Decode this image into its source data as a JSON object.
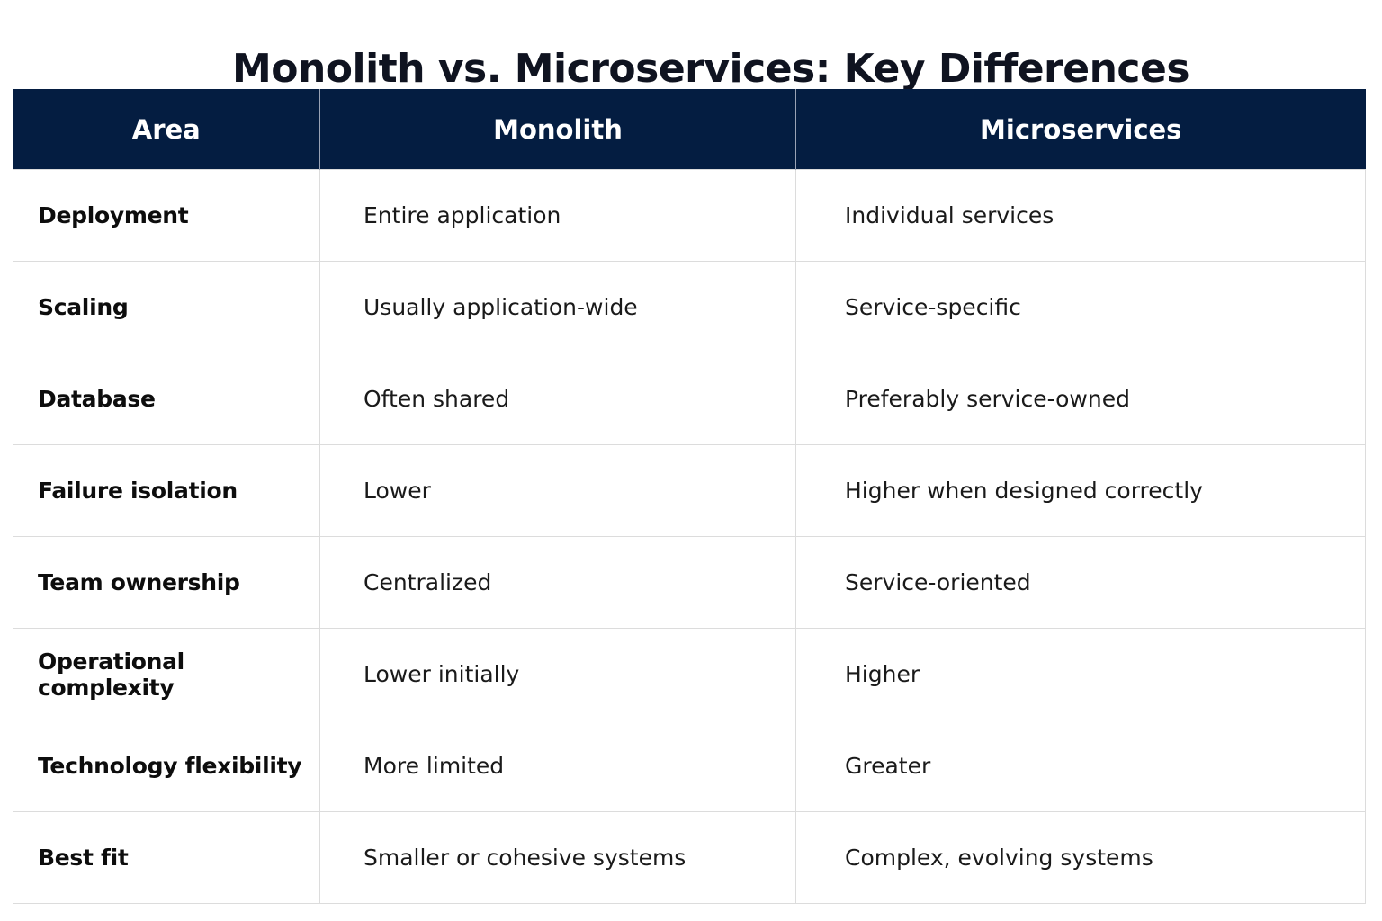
{
  "title": "Monolith vs. Microservices: Key Differences",
  "table": {
    "headers": {
      "area": "Area",
      "monolith": "Monolith",
      "microservices": "Microservices"
    },
    "rows": [
      {
        "area": "Deployment",
        "monolith": "Entire application",
        "microservices": "Individual services"
      },
      {
        "area": "Scaling",
        "monolith": "Usually application-wide",
        "microservices": "Service-specific"
      },
      {
        "area": "Database",
        "monolith": "Often shared",
        "microservices": "Preferably service-owned"
      },
      {
        "area": "Failure isolation",
        "monolith": "Lower",
        "microservices": "Higher when designed correctly"
      },
      {
        "area": "Team ownership",
        "monolith": "Centralized",
        "microservices": "Service-oriented"
      },
      {
        "area": "Operational complexity",
        "monolith": "Lower initially",
        "microservices": "Higher"
      },
      {
        "area": "Technology flexibility",
        "monolith": "More limited",
        "microservices": "Greater"
      },
      {
        "area": "Best fit",
        "monolith": "Smaller or cohesive systems",
        "microservices": "Complex, evolving systems"
      }
    ]
  },
  "colors": {
    "header_background": "#041d41",
    "header_text": "#ffffff",
    "grid_lines": "#dcdcdc",
    "title_text": "#0f1320"
  }
}
